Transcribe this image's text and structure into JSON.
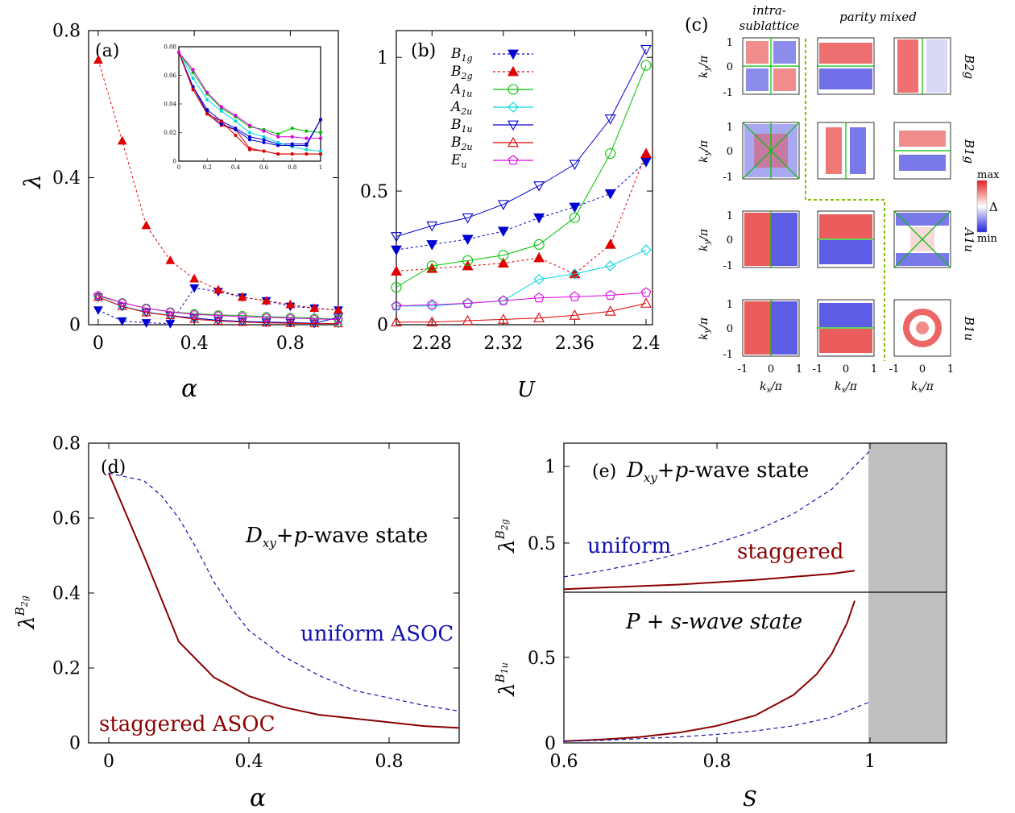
{
  "colors": {
    "blue": "#0000d0",
    "red": "#e00000",
    "green": "#00c000",
    "cyan": "#00d8e0",
    "magenta": "#e000e0",
    "darkred": "#8b0000",
    "navy": "#1010b0"
  },
  "chart_data": [
    {
      "panel_label": "(a)",
      "type": "line",
      "xlabel": "α",
      "ylabel": "λ",
      "xlim": [
        -0.05,
        1
      ],
      "ylim": [
        0,
        0.8
      ],
      "xticks": [
        "0",
        "0.4",
        "0.8"
      ],
      "yticks": [
        "0",
        "0.4",
        "0.8"
      ],
      "x": [
        0,
        0.1,
        0.2,
        0.3,
        0.4,
        0.5,
        0.6,
        0.7,
        0.8,
        0.9,
        1.0
      ],
      "series": [
        {
          "name": "B1g",
          "values": [
            0.04,
            0.01,
            0.005,
            0.003,
            0.1,
            0.09,
            0.075,
            0.065,
            0.05,
            0.045,
            0.04
          ]
        },
        {
          "name": "B2g",
          "values": [
            0.72,
            0.5,
            0.27,
            0.175,
            0.125,
            0.095,
            0.075,
            0.065,
            0.055,
            0.045,
            0.04
          ]
        },
        {
          "name": "A1u",
          "values": [
            0.078,
            0.06,
            0.045,
            0.035,
            0.03,
            0.027,
            0.025,
            0.022,
            0.02,
            0.018,
            0.015
          ]
        },
        {
          "name": "A2u",
          "values": [
            0.075,
            0.05,
            0.035,
            0.025,
            0.018,
            0.012,
            0.009,
            0.007,
            0.005,
            0.004,
            0.003
          ]
        },
        {
          "name": "B1u",
          "values": [
            0.075,
            0.05,
            0.033,
            0.025,
            0.018,
            0.012,
            0.009,
            0.007,
            0.006,
            0.004,
            0.02
          ]
        },
        {
          "name": "B2u",
          "values": [
            0.075,
            0.05,
            0.033,
            0.025,
            0.015,
            0.01,
            0.007,
            0.005,
            0.004,
            0.003,
            0.003
          ]
        },
        {
          "name": "Eu",
          "values": [
            0.08,
            0.06,
            0.045,
            0.035,
            0.028,
            0.025,
            0.022,
            0.02,
            0.018,
            0.016,
            0.014
          ]
        }
      ],
      "inset": {
        "xlim": [
          0,
          1
        ],
        "ylim": [
          0,
          0.08
        ],
        "xticks": [
          "0",
          "0.2",
          "0.4",
          "0.6",
          "0.8",
          "1"
        ],
        "yticks": [
          "0",
          "0.02",
          "0.04",
          "0.06",
          "0.08"
        ],
        "x": [
          0,
          0.1,
          0.2,
          0.3,
          0.4,
          0.5,
          0.6,
          0.7,
          0.8,
          0.9,
          1.0
        ],
        "series": [
          {
            "name": "B1g",
            "values": [
              0.076,
              0.052,
              0.036,
              0.028,
              0.023,
              0.017,
              0.015,
              0.012,
              0.012,
              0.012,
              0.029
            ]
          },
          {
            "name": "B2g",
            "values": [
              0.076,
              0.05,
              0.033,
              0.025,
              0.022,
              0.009,
              0.007,
              0.005,
              0.005,
              0.005,
              0.005
            ]
          },
          {
            "name": "A1u",
            "values": [
              0.076,
              0.062,
              0.047,
              0.037,
              0.031,
              0.024,
              0.022,
              0.019,
              0.023,
              0.021,
              0.02
            ]
          },
          {
            "name": "A2u",
            "values": [
              0.076,
              0.058,
              0.043,
              0.035,
              0.028,
              0.02,
              0.017,
              0.013,
              0.01,
              0.008,
              0.007
            ]
          },
          {
            "name": "B1u",
            "values": [
              0.076,
              0.052,
              0.034,
              0.026,
              0.022,
              0.015,
              0.013,
              0.011,
              0.011,
              0.011,
              0.029
            ]
          },
          {
            "name": "B2u",
            "values": [
              0.076,
              0.05,
              0.033,
              0.028,
              0.018,
              0.008,
              0.007,
              0.005,
              0.005,
              0.005,
              0.005
            ]
          },
          {
            "name": "Eu",
            "values": [
              0.076,
              0.064,
              0.048,
              0.038,
              0.032,
              0.025,
              0.021,
              0.017,
              0.017,
              0.016,
              0.016
            ]
          }
        ]
      }
    },
    {
      "panel_label": "(b)",
      "type": "line",
      "xlabel": "U",
      "xlim": [
        2.26,
        2.4
      ],
      "ylim": [
        0,
        1.1
      ],
      "xticks": [
        "2.28",
        "2.32",
        "2.36",
        "2.4"
      ],
      "yticks": [
        "0",
        "0.5",
        "1"
      ],
      "x": [
        2.26,
        2.27,
        2.28,
        2.29,
        2.3,
        2.31,
        2.32,
        2.33,
        2.34,
        2.35,
        2.36,
        2.37,
        2.38,
        2.39,
        2.4
      ],
      "legend": [
        "B1g",
        "B2g",
        "A1u",
        "A2u",
        "B1u",
        "B2u",
        "Eu"
      ],
      "series": [
        {
          "name": "B1g",
          "x": [
            2.26,
            2.28,
            2.3,
            2.32,
            2.34,
            2.36,
            2.38,
            2.4
          ],
          "values": [
            0.28,
            0.3,
            0.32,
            0.35,
            0.4,
            0.44,
            0.49,
            0.61
          ]
        },
        {
          "name": "B2g",
          "x": [
            2.26,
            2.28,
            2.3,
            2.32,
            2.34,
            2.36,
            2.38,
            2.4
          ],
          "values": [
            0.2,
            0.21,
            0.22,
            0.23,
            0.25,
            0.19,
            0.3,
            0.64
          ]
        },
        {
          "name": "A1u",
          "x": [
            2.26,
            2.28,
            2.3,
            2.32,
            2.34,
            2.36,
            2.38,
            2.4
          ],
          "values": [
            0.14,
            0.22,
            0.24,
            0.26,
            0.3,
            0.4,
            0.64,
            0.97
          ]
        },
        {
          "name": "A2u",
          "x": [
            2.26,
            2.28,
            2.3,
            2.32,
            2.34,
            2.36,
            2.38,
            2.4
          ],
          "values": [
            0.07,
            0.07,
            0.08,
            0.09,
            0.17,
            0.19,
            0.22,
            0.28
          ]
        },
        {
          "name": "B1u",
          "x": [
            2.26,
            2.28,
            2.3,
            2.32,
            2.34,
            2.36,
            2.38,
            2.4
          ],
          "values": [
            0.33,
            0.37,
            0.4,
            0.45,
            0.52,
            0.6,
            0.77,
            1.03
          ]
        },
        {
          "name": "B2u",
          "x": [
            2.26,
            2.28,
            2.3,
            2.32,
            2.34,
            2.36,
            2.38,
            2.4
          ],
          "values": [
            0.01,
            0.01,
            0.015,
            0.02,
            0.025,
            0.035,
            0.05,
            0.08
          ]
        },
        {
          "name": "Eu",
          "x": [
            2.26,
            2.28,
            2.3,
            2.32,
            2.34,
            2.36,
            2.38,
            2.4
          ],
          "values": [
            0.07,
            0.075,
            0.08,
            0.09,
            0.1,
            0.105,
            0.11,
            0.12
          ]
        }
      ]
    },
    {
      "panel_label": "(d)",
      "type": "line",
      "xlabel": "α",
      "xlim": [
        0,
        1
      ],
      "ylim": [
        0,
        0.8
      ],
      "xticks": [
        "0",
        "0.4",
        "0.8"
      ],
      "yticks": [
        "0",
        "0.2",
        "0.4",
        "0.6",
        "0.8"
      ],
      "annotations": [
        "D_xy+p-wave state",
        "uniform ASOC",
        "staggered ASOC"
      ],
      "series": [
        {
          "name": "uniform ASOC",
          "x": [
            0,
            0.05,
            0.1,
            0.15,
            0.2,
            0.25,
            0.3,
            0.35,
            0.4,
            0.5,
            0.6,
            0.7,
            0.8,
            0.9,
            1.0
          ],
          "values": [
            0.72,
            0.71,
            0.7,
            0.66,
            0.6,
            0.52,
            0.43,
            0.36,
            0.3,
            0.23,
            0.18,
            0.14,
            0.12,
            0.1,
            0.085
          ]
        },
        {
          "name": "staggered ASOC",
          "x": [
            0,
            0.1,
            0.2,
            0.3,
            0.4,
            0.5,
            0.6,
            0.7,
            0.8,
            0.9,
            1.0
          ],
          "values": [
            0.72,
            0.5,
            0.27,
            0.175,
            0.125,
            0.095,
            0.075,
            0.065,
            0.055,
            0.045,
            0.04
          ]
        }
      ]
    },
    {
      "panel_label": "(e)",
      "type": "line",
      "xlabel": "S",
      "xlim": [
        0.6,
        1.1
      ],
      "xticks": [
        "0.6",
        "0.8",
        "1"
      ],
      "top": {
        "ylim": [
          0.18,
          1.15
        ],
        "yticks": [
          "0.5",
          "1"
        ],
        "annotation": "D_xy+p-wave state",
        "series": [
          {
            "name": "uniform",
            "x": [
              0.6,
              0.65,
              0.7,
              0.75,
              0.8,
              0.85,
              0.9,
              0.95,
              1.0
            ],
            "values": [
              0.28,
              0.32,
              0.37,
              0.43,
              0.5,
              0.58,
              0.69,
              0.85,
              1.1
            ]
          },
          {
            "name": "staggered",
            "x": [
              0.6,
              0.65,
              0.7,
              0.75,
              0.8,
              0.85,
              0.9,
              0.95,
              0.98
            ],
            "values": [
              0.2,
              0.21,
              0.22,
              0.23,
              0.245,
              0.26,
              0.28,
              0.3,
              0.32
            ]
          }
        ]
      },
      "bottom": {
        "ylim": [
          0,
          0.88
        ],
        "yticks": [
          "0",
          "0.5"
        ],
        "annotation": "P + s-wave state",
        "series": [
          {
            "name": "staggered",
            "x": [
              0.6,
              0.65,
              0.7,
              0.75,
              0.8,
              0.85,
              0.9,
              0.93,
              0.95,
              0.97,
              0.98
            ],
            "values": [
              0.01,
              0.02,
              0.035,
              0.06,
              0.1,
              0.16,
              0.28,
              0.4,
              0.52,
              0.7,
              0.83
            ]
          },
          {
            "name": "uniform",
            "x": [
              0.6,
              0.65,
              0.7,
              0.75,
              0.8,
              0.85,
              0.9,
              0.95,
              1.0
            ],
            "values": [
              0.01,
              0.015,
              0.025,
              0.035,
              0.05,
              0.07,
              0.1,
              0.15,
              0.24
            ]
          }
        ]
      },
      "shaded_region": [
        1.0,
        1.1
      ]
    }
  ],
  "panel_c": {
    "label": "(c)",
    "col_headers": [
      "intra-",
      "sublattice",
      "parity mixed"
    ],
    "row_labels": [
      "B2g",
      "B1g",
      "A1u",
      "B1u"
    ],
    "colorbar": {
      "max": "max",
      "min": "min",
      "symbol": "Δ"
    },
    "axis_ticks": [
      "-1",
      "0",
      "1"
    ]
  },
  "text": {
    "a_label": "(a)",
    "b_label": "(b)",
    "c_label": "(c)",
    "d_label": "(d)",
    "e_label": "(e)",
    "lambda": "λ",
    "alpha": "α",
    "U": "U",
    "S": "S",
    "d_state": "+p-wave state",
    "d_Dxy": "D",
    "d_uniform": "uniform ASOC",
    "d_staggered": "staggered ASOC",
    "e_state": "+p-wave state",
    "e_Dxy": "D",
    "e_uniform": "uniform",
    "e_staggered": "staggered",
    "e_ps": "P + s-wave state"
  }
}
